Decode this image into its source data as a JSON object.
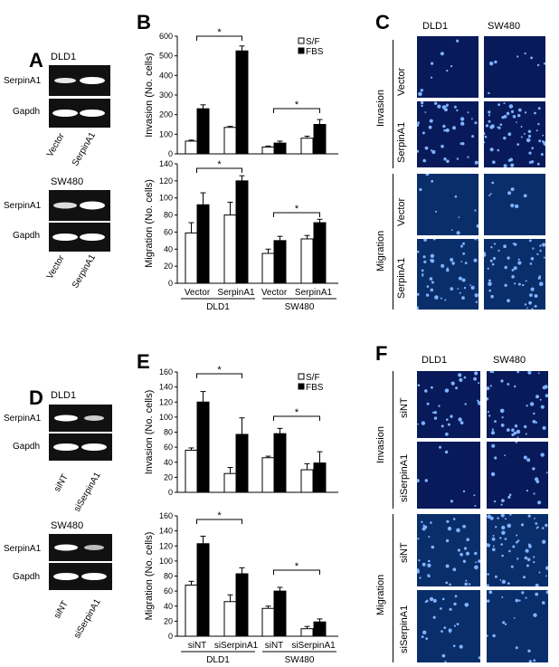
{
  "panels": {
    "A": {
      "letter": "A",
      "gel1": {
        "cell": "DLD1",
        "row1": "SerpinA1",
        "row2": "Gapdh",
        "lane1": "Vector",
        "lane2": "SerpinA1"
      },
      "gel2": {
        "cell": "SW480",
        "row1": "SerpinA1",
        "row2": "Gapdh",
        "lane1": "Vector",
        "lane2": "SerpinA1"
      }
    },
    "B": {
      "letter": "B"
    },
    "C": {
      "letter": "C",
      "col1": "DLD1",
      "col2": "SW480",
      "group1": "Invasion",
      "group2": "Migration",
      "row_vector": "Vector",
      "row_serpin": "SerpinA1",
      "row_vector2": "Vector",
      "row_serpin2": "SerpinA1"
    },
    "D": {
      "letter": "D",
      "gel1": {
        "cell": "DLD1",
        "row1": "SerpinA1",
        "row2": "Gapdh",
        "lane1": "siNT",
        "lane2": "siSerpinA1"
      },
      "gel2": {
        "cell": "SW480",
        "row1": "SerpinA1",
        "row2": "Gapdh",
        "lane1": "siNT",
        "lane2": "siSerpinA1"
      }
    },
    "E": {
      "letter": "E"
    },
    "F": {
      "letter": "F",
      "col1": "DLD1",
      "col2": "SW480",
      "group1": "Invasion",
      "group2": "Migration",
      "row_si1": "siNT",
      "row_si2": "siSerpinA1",
      "row_si3": "siNT",
      "row_si4": "siSerpinA1"
    }
  },
  "colors": {
    "sf": "#ffffff",
    "fbs": "#000000",
    "micro_bg": "#081a5a",
    "micro_bg2": "#0a2e6a",
    "cell": "#7fb2ff"
  },
  "chart_data": [
    {
      "panel": "B-top",
      "type": "bar",
      "ylabel": "Invasion (No. cells)",
      "ylim": [
        0,
        600
      ],
      "yticks": [
        "0",
        "100",
        "200",
        "300",
        "400",
        "500",
        "600"
      ],
      "categories": [
        "Vector",
        "SerpinA1",
        "Vector",
        "SerpinA1"
      ],
      "groups": [
        "DLD1",
        "SW480"
      ],
      "legend": [
        "S/F",
        "FBS"
      ],
      "series": [
        {
          "name": "S/F",
          "values": [
            65,
            135,
            35,
            80
          ],
          "errors": [
            5,
            5,
            5,
            10
          ]
        },
        {
          "name": "FBS",
          "values": [
            230,
            525,
            55,
            150
          ],
          "errors": [
            20,
            25,
            10,
            25
          ]
        }
      ],
      "sig": [
        "*",
        "*"
      ]
    },
    {
      "panel": "B-bottom",
      "type": "bar",
      "ylabel": "Migration (No. cells)",
      "ylim": [
        0,
        140
      ],
      "yticks": [
        "0",
        "20",
        "40",
        "60",
        "80",
        "100",
        "120",
        "140"
      ],
      "categories": [
        "Vector",
        "SerpinA1",
        "Vector",
        "SerpinA1"
      ],
      "groups": [
        "DLD1",
        "SW480"
      ],
      "legend": [
        "S/F",
        "FBS"
      ],
      "series": [
        {
          "name": "S/F",
          "values": [
            59,
            80,
            35,
            52
          ],
          "errors": [
            12,
            15,
            5,
            4
          ]
        },
        {
          "name": "FBS",
          "values": [
            92,
            120,
            50,
            71
          ],
          "errors": [
            14,
            6,
            5,
            4
          ]
        }
      ],
      "sig": [
        "*",
        "*"
      ]
    },
    {
      "panel": "E-top",
      "type": "bar",
      "ylabel": "Invasion (No. cells)",
      "ylim": [
        0,
        160
      ],
      "yticks": [
        "0",
        "20",
        "40",
        "60",
        "80",
        "100",
        "120",
        "140",
        "160"
      ],
      "categories": [
        "siNT",
        "siSerpinA1",
        "siNT",
        "siSerpinA1"
      ],
      "groups": [
        "DLD1",
        "SW480"
      ],
      "legend": [
        "S/F",
        "FBS"
      ],
      "series": [
        {
          "name": "S/F",
          "values": [
            56,
            25,
            46,
            30
          ],
          "errors": [
            3,
            8,
            2,
            8
          ]
        },
        {
          "name": "FBS",
          "values": [
            120,
            77,
            78,
            39
          ],
          "errors": [
            14,
            22,
            7,
            15
          ]
        }
      ],
      "sig": [
        "*",
        "*"
      ]
    },
    {
      "panel": "E-bottom",
      "type": "bar",
      "ylabel": "Migration (No. cells)",
      "ylim": [
        0,
        160
      ],
      "yticks": [
        "0",
        "20",
        "40",
        "60",
        "80",
        "100",
        "120",
        "140",
        "160"
      ],
      "categories": [
        "siNT",
        "siSerpinA1",
        "siNT",
        "siSerpinA1"
      ],
      "groups": [
        "DLD1",
        "SW480"
      ],
      "legend": [
        "S/F",
        "FBS"
      ],
      "series": [
        {
          "name": "S/F",
          "values": [
            68,
            46,
            37,
            10
          ],
          "errors": [
            5,
            9,
            3,
            3
          ]
        },
        {
          "name": "FBS",
          "values": [
            123,
            83,
            60,
            19
          ],
          "errors": [
            10,
            8,
            5,
            4
          ]
        }
      ],
      "sig": [
        "*",
        "*"
      ]
    }
  ]
}
